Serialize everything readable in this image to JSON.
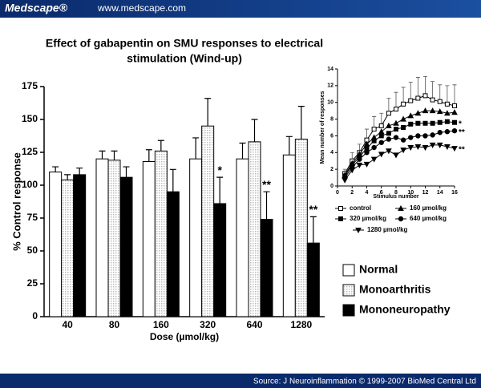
{
  "header": {
    "logo": "Medscape®",
    "url": "www.medscape.com"
  },
  "footer": {
    "source": "Source: J Neuroinflammation © 1999-2007 BioMed Central Ltd"
  },
  "chart_data": [
    {
      "type": "bar",
      "title": [
        "Effect of gabapentin on SMU responses to electrical",
        "stimulation (Wind-up)"
      ],
      "y_label": "% Control response",
      "x_label": "Dose (µmol/kg)",
      "categories": [
        "40",
        "80",
        "160",
        "320",
        "640",
        "1280"
      ],
      "ylim": [
        0,
        175
      ],
      "yticks": [
        0,
        25,
        50,
        75,
        100,
        125,
        150,
        175
      ],
      "series": [
        {
          "name": "Normal",
          "color": "#ffffff",
          "values": [
            110,
            120,
            118,
            120,
            120,
            123
          ],
          "errors": [
            4,
            6,
            9,
            16,
            12,
            14
          ]
        },
        {
          "name": "Monoarthritis",
          "color": "#bbbbbb",
          "pattern": "dots",
          "values": [
            104,
            119,
            126,
            145,
            133,
            135
          ],
          "errors": [
            4,
            7,
            8,
            21,
            17,
            25
          ]
        },
        {
          "name": "Mononeuropathy",
          "color": "#000000",
          "values": [
            108,
            106,
            95,
            86,
            74,
            56
          ],
          "errors": [
            5,
            8,
            17,
            20,
            21,
            20
          ],
          "significance": [
            null,
            null,
            null,
            "*",
            "**",
            "**"
          ]
        }
      ]
    },
    {
      "type": "line",
      "y_label": "Mean number of responses",
      "x_label": "Stimulus number",
      "x": [
        1,
        2,
        3,
        4,
        5,
        6,
        7,
        8,
        9,
        10,
        11,
        12,
        13,
        14,
        15,
        16
      ],
      "xlim": [
        0,
        16
      ],
      "xticks": [
        0,
        2,
        4,
        6,
        8,
        10,
        12,
        14,
        16
      ],
      "ylim": [
        0,
        14
      ],
      "yticks": [
        0,
        2,
        4,
        6,
        8,
        10,
        12,
        14
      ],
      "series": [
        {
          "name": "control",
          "color": "#000000",
          "marker": "square-open",
          "values": [
            1.5,
            3,
            4,
            5.5,
            6.8,
            7.2,
            8.7,
            9.2,
            9.8,
            10.2,
            10.5,
            10.8,
            10.3,
            10.1,
            9.8,
            9.6
          ],
          "errors": [
            0.5,
            1,
            1,
            1.3,
            1.5,
            1.5,
            1.8,
            2,
            2,
            2.2,
            2.5,
            2.3,
            2.2,
            2,
            2.2,
            2.5
          ]
        },
        {
          "name": "160 µmol/kg",
          "color": "#000000",
          "marker": "triangle-up",
          "values": [
            1.3,
            2.7,
            3.8,
            5,
            5.8,
            6.5,
            7.2,
            7.5,
            8,
            8.4,
            8.7,
            9,
            9,
            8.9,
            8.7,
            8.8
          ]
        },
        {
          "name": "320 µmol/kg",
          "color": "#000000",
          "marker": "square",
          "values": [
            1.2,
            2.5,
            3.5,
            4.5,
            5.4,
            6,
            6.3,
            6.8,
            7,
            7.4,
            7.5,
            7.5,
            7.5,
            7.6,
            7.7,
            7.6
          ],
          "significance": "*"
        },
        {
          "name": "640 µmol/kg",
          "color": "#000000",
          "marker": "circle",
          "values": [
            1,
            2.2,
            3.2,
            4,
            4.6,
            5.2,
            5.6,
            5.8,
            5.5,
            5.8,
            6,
            6,
            6.1,
            6.4,
            6.5,
            6.6
          ],
          "significance": "**"
        },
        {
          "name": "1280 µmol/kg",
          "color": "#000000",
          "marker": "triangle-down",
          "values": [
            0.7,
            1.9,
            2.5,
            2.6,
            3.2,
            3.8,
            4.2,
            3.7,
            4.3,
            4.6,
            4.7,
            4.6,
            4.9,
            4.9,
            4.7,
            4.5
          ],
          "significance": "**"
        }
      ]
    }
  ]
}
